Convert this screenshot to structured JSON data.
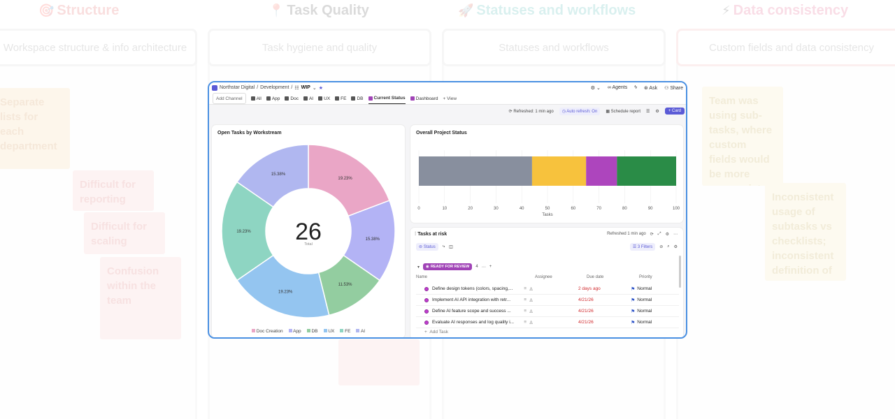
{
  "background": {
    "columns": [
      {
        "icon": "🎯",
        "title": "Structure",
        "header": "Workspace structure & info architecture",
        "color": "#e03a3a"
      },
      {
        "icon": "📍",
        "title": "Task Quality",
        "header": "Task hygiene and quality",
        "color": "#555555"
      },
      {
        "icon": "🚀",
        "title": "Statuses and workflows",
        "header": "Statuses and workflows",
        "color": "#1aa7a0"
      },
      {
        "icon": "⚡",
        "title": "Data consistency",
        "header": "Custom fields and data consistency",
        "color": "#e0326b"
      }
    ],
    "stickies": [
      {
        "text": "Separate lists for each department",
        "color": "#f7c98a",
        "fg": "#c8741d"
      },
      {
        "text": "Difficult for reporting",
        "color": "#f5b6b6",
        "fg": "#d04a4a"
      },
      {
        "text": "Difficult for scaling",
        "color": "#f5b6b6",
        "fg": "#d04a4a"
      },
      {
        "text": "Confusion within the team",
        "color": "#f5b6b6",
        "fg": "#d04a4a"
      },
      {
        "text": "Team was using sub-tasks, where custom fields would be more appropriate",
        "color": "#f3e4a5",
        "fg": "#b08d1a"
      },
      {
        "text": "Inconsistent usage of subtasks vs checklists; inconsistent definition of \"Done.\"",
        "color": "#f3e4a5",
        "fg": "#b08d1a"
      }
    ]
  },
  "app": {
    "breadcrumb": {
      "workspace": "Northstar Digital",
      "sep": "/",
      "folder": "Development",
      "list": "WIP"
    },
    "top_actions": {
      "agents": "Agents",
      "ask": "Ask",
      "share": "Share"
    },
    "tabs": [
      {
        "label": "Add Channel",
        "icon": "plus"
      },
      {
        "label": "All",
        "icon": "grid-icon"
      },
      {
        "label": "App",
        "icon": "app-icon"
      },
      {
        "label": "Doc",
        "icon": "doc-icon"
      },
      {
        "label": "AI",
        "icon": "ai-icon"
      },
      {
        "label": "UX",
        "icon": "ux-icon"
      },
      {
        "label": "FE",
        "icon": "fe-icon"
      },
      {
        "label": "DB",
        "icon": "db-icon"
      },
      {
        "label": "Current Status",
        "icon": "dashboard-icon",
        "active": true
      },
      {
        "label": "Dashboard",
        "icon": "dashboard-icon"
      },
      {
        "label": "+ View",
        "icon": "plus"
      }
    ],
    "toolbar": {
      "refreshed": "Refreshed: 1 min ago",
      "auto_refresh": "Auto refresh: On",
      "schedule": "Schedule report",
      "card": "+ Card"
    },
    "donut": {
      "title": "Open Tasks by Workstream",
      "total": "26",
      "total_label": "Total",
      "legend": [
        {
          "label": "Doc Creation",
          "color": "#eaa6c6"
        },
        {
          "label": "App",
          "color": "#b3b3f5"
        },
        {
          "label": "DB",
          "color": "#93cda0"
        },
        {
          "label": "UX",
          "color": "#94c5f0"
        },
        {
          "label": "FE",
          "color": "#8ed5c2"
        },
        {
          "label": "AI",
          "color": "#b0b7f0"
        }
      ]
    },
    "status_chart": {
      "title": "Overall Project Status",
      "xlabel": "Tasks"
    },
    "tasks": {
      "title": "Tasks at risk",
      "refreshed": "Refreshed 1 min ago",
      "status_chip": "Status",
      "filters": "3 Filters",
      "group_label": "READY FOR REVIEW",
      "group_count": "4",
      "columns": {
        "name": "Name",
        "assignee": "Assignee",
        "due": "Due date",
        "priority": "Priority"
      },
      "rows": [
        {
          "name": "Define design tokens (colors, spacing,...",
          "due": "2 days ago",
          "priority": "Normal"
        },
        {
          "name": "Implement AI API integration with retr...",
          "due": "4/21/26",
          "priority": "Normal"
        },
        {
          "name": "Define AI feature scope and success ...",
          "due": "4/21/26",
          "priority": "Normal"
        },
        {
          "name": "Evaluate AI responses and log quality i...",
          "due": "4/21/26",
          "priority": "Normal"
        }
      ],
      "add_task": "Add Task"
    }
  },
  "chart_data": [
    {
      "type": "pie",
      "title": "Open Tasks by Workstream",
      "series": [
        {
          "name": "Doc Creation",
          "value": 19.23,
          "label": "19.23%",
          "color": "#eaa6c6"
        },
        {
          "name": "App",
          "value": 15.38,
          "label": "15.38%",
          "color": "#b3b3f5"
        },
        {
          "name": "DB",
          "value": 11.53,
          "label": "11.53%",
          "color": "#93cda0"
        },
        {
          "name": "UX",
          "value": 19.23,
          "label": "19.23%",
          "color": "#94c5f0"
        },
        {
          "name": "FE",
          "value": 19.23,
          "label": "19.23%",
          "color": "#8ed5c2"
        },
        {
          "name": "AI",
          "value": 15.38,
          "label": "15.38%",
          "color": "#b0b7f0"
        }
      ],
      "center_value": "26",
      "center_label": "Total",
      "legend_position": "bottom"
    },
    {
      "type": "bar",
      "title": "Overall Project Status",
      "orientation": "horizontal-stacked",
      "segments": [
        {
          "value": 44,
          "color": "#888f9e"
        },
        {
          "value": 21,
          "color": "#f7c23d"
        },
        {
          "value": 12,
          "color": "#ad45bd"
        },
        {
          "value": 23,
          "color": "#2a8c47"
        }
      ],
      "xlim": [
        0,
        100
      ],
      "xticks": [
        0,
        10,
        20,
        30,
        40,
        50,
        60,
        70,
        80,
        90,
        100
      ],
      "xlabel": "Tasks",
      "grid": true
    }
  ]
}
